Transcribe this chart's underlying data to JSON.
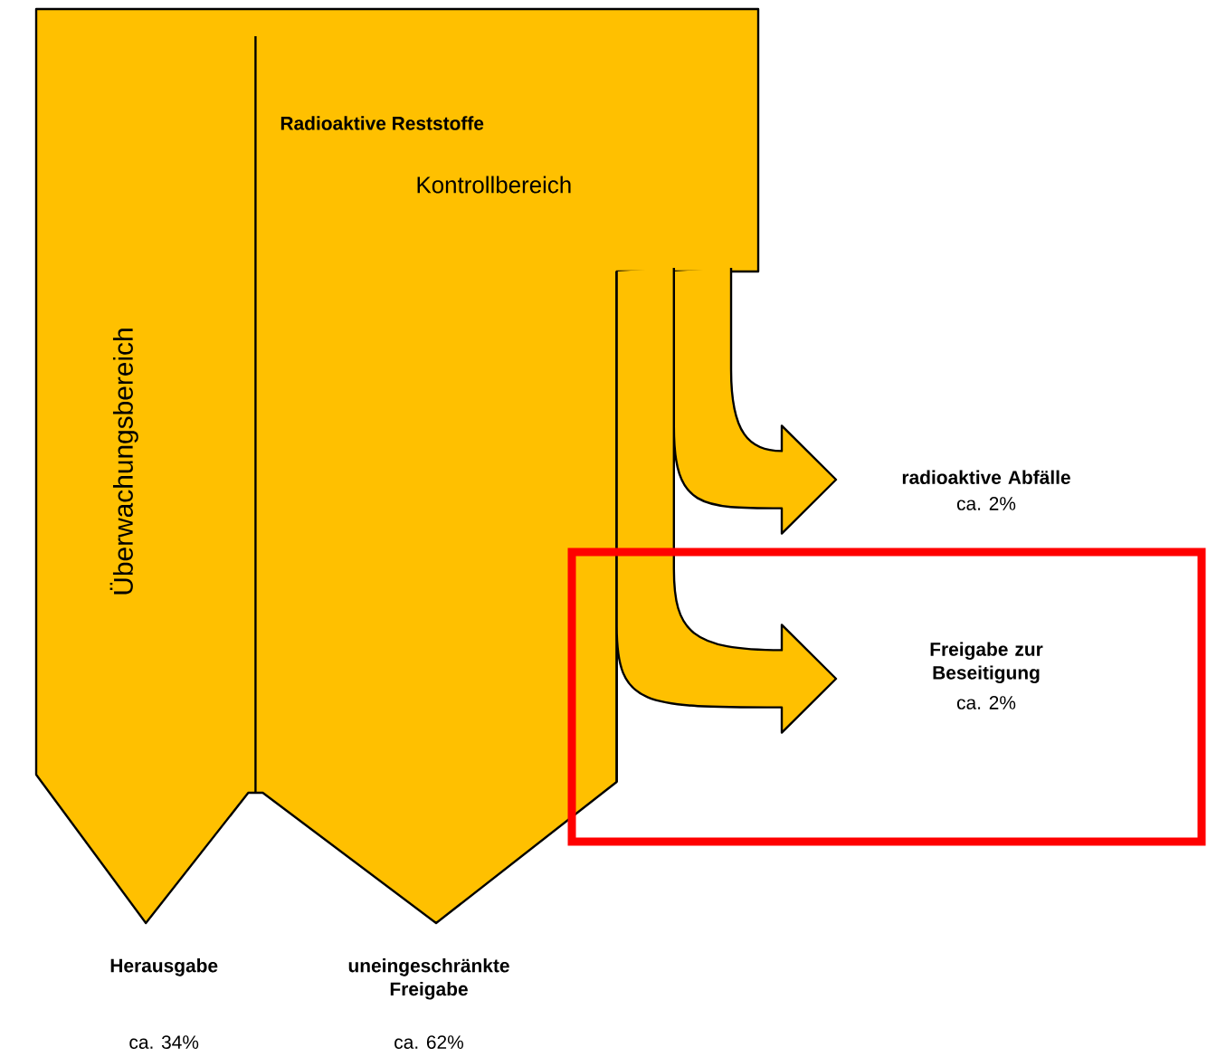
{
  "chart_data": {
    "type": "other",
    "title": "Radioaktive Reststoffe",
    "categories": [
      "Herausgabe",
      "uneingeschränkte Freigabe",
      "radioaktive Abfälle",
      "Freigabe zur Beseitigung"
    ],
    "values": [
      34,
      62,
      2,
      2
    ],
    "value_labels": [
      "ca. 34%",
      "ca. 62%",
      "ca. 2%",
      "ca. 2%"
    ],
    "annotations": [
      "Kontrollbereich",
      "Überwachungsbereich"
    ],
    "color": "#ffc000"
  }
}
